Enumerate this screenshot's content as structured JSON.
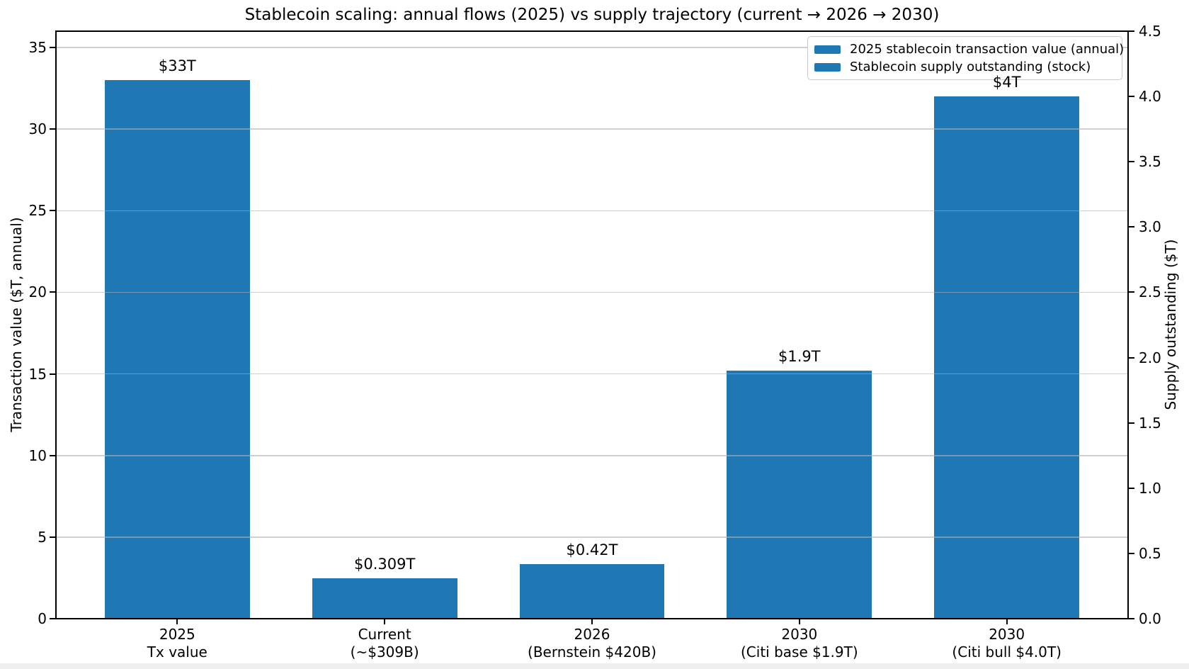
{
  "figure": {
    "background": "#ffffff",
    "bottom_strip_color": "#edeff1",
    "spine_color": "#000000",
    "text_color": "#000000"
  },
  "chart_data": {
    "type": "bar",
    "title": "Stablecoin scaling: annual flows (2025) vs supply trajectory (current → 2026 → 2030)",
    "bar_color": "#1f77b4",
    "grid": true,
    "grid_color": "#b0b0b0",
    "legend": {
      "position": "upper-right",
      "entries": [
        {
          "swatch_color": "#1f77b4",
          "label": "2025 stablecoin transaction value (annual)"
        },
        {
          "swatch_color": "#1f77b4",
          "label": "Stablecoin supply outstanding (stock)"
        }
      ]
    },
    "left_axis": {
      "label": "Transaction value ($T, annual)",
      "min": 0,
      "max": 36,
      "ticks": [
        {
          "label": "0",
          "value": 0
        },
        {
          "label": "5",
          "value": 5
        },
        {
          "label": "10",
          "value": 10
        },
        {
          "label": "15",
          "value": 15
        },
        {
          "label": "20",
          "value": 20
        },
        {
          "label": "25",
          "value": 25
        },
        {
          "label": "30",
          "value": 30
        },
        {
          "label": "35",
          "value": 35
        }
      ]
    },
    "right_axis": {
      "label": "Supply outstanding ($T)",
      "min": 0,
      "max": 4.5,
      "ticks": [
        {
          "label": "0.0",
          "value": 0
        },
        {
          "label": "0.5",
          "value": 0.5
        },
        {
          "label": "1.0",
          "value": 1.0
        },
        {
          "label": "1.5",
          "value": 1.5
        },
        {
          "label": "2.0",
          "value": 2.0
        },
        {
          "label": "2.5",
          "value": 2.5
        },
        {
          "label": "3.0",
          "value": 3.0
        },
        {
          "label": "3.5",
          "value": 3.5
        },
        {
          "label": "4.0",
          "value": 4.0
        },
        {
          "label": "4.5",
          "value": 4.5
        }
      ]
    },
    "bars": [
      {
        "category": [
          "2025",
          "Tx value"
        ],
        "series": "2025 stablecoin transaction value (annual)",
        "axis": "left",
        "value": 33,
        "value_label": "$33T"
      },
      {
        "category": [
          "Current",
          "(~$309B)"
        ],
        "series": "Stablecoin supply outstanding (stock)",
        "axis": "right",
        "value": 0.309,
        "value_label": "$0.309T"
      },
      {
        "category": [
          "2026",
          "(Bernstein $420B)"
        ],
        "series": "Stablecoin supply outstanding (stock)",
        "axis": "right",
        "value": 0.42,
        "value_label": "$0.42T"
      },
      {
        "category": [
          "2030",
          "(Citi base $1.9T)"
        ],
        "series": "Stablecoin supply outstanding (stock)",
        "axis": "right",
        "value": 1.9,
        "value_label": "$1.9T"
      },
      {
        "category": [
          "2030",
          "(Citi bull $4.0T)"
        ],
        "series": "Stablecoin supply outstanding (stock)",
        "axis": "right",
        "value": 4.0,
        "value_label": "$4T"
      }
    ]
  }
}
